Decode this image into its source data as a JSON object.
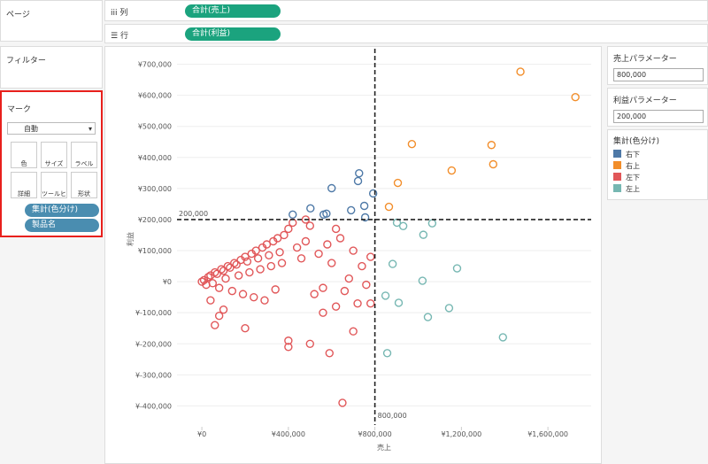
{
  "ui": {
    "pages_label": "ページ",
    "filters_label": "フィルター",
    "shelves": [
      {
        "label": "列",
        "pill": "合計(売上)"
      },
      {
        "label": "行",
        "pill": "合計(利益)"
      }
    ],
    "marks": {
      "title": "マーク",
      "mark_type": "自動",
      "buttons": [
        "色",
        "サイズ",
        "ラベル",
        "詳細",
        "ツールヒ...",
        "形状"
      ],
      "pills": [
        "集計(色分け)",
        "製品名"
      ]
    },
    "parameters": [
      {
        "title": "売上パラメーター",
        "value": "800,000"
      },
      {
        "title": "利益パラメーター",
        "value": "200,000"
      }
    ]
  },
  "chart_data": {
    "type": "scatter",
    "x_label": "売上",
    "y_label": "利益",
    "legend_title": "集計(色分け)",
    "grid": true,
    "xlim": [
      -115000,
      1800000
    ],
    "ylim": [
      -490000,
      750000
    ],
    "xticks": [
      {
        "value": 0,
        "label": "¥0"
      },
      {
        "value": 400000,
        "label": "¥400,000"
      },
      {
        "value": 800000,
        "label": "¥800,000"
      },
      {
        "value": 1200000,
        "label": "¥1,200,000"
      },
      {
        "value": 1600000,
        "label": "¥1,600,000"
      }
    ],
    "yticks": [
      {
        "value": -400000,
        "label": "¥-400,000"
      },
      {
        "value": -300000,
        "label": "¥-300,000"
      },
      {
        "value": -200000,
        "label": "¥-200,000"
      },
      {
        "value": -100000,
        "label": "¥-100,000"
      },
      {
        "value": 0,
        "label": "¥0"
      },
      {
        "value": 100000,
        "label": "¥100,000"
      },
      {
        "value": 200000,
        "label": "¥200,000"
      },
      {
        "value": 300000,
        "label": "¥300,000"
      },
      {
        "value": 400000,
        "label": "¥400,000"
      },
      {
        "value": 500000,
        "label": "¥500,000"
      },
      {
        "value": 600000,
        "label": "¥600,000"
      },
      {
        "value": 700000,
        "label": "¥700,000"
      }
    ],
    "reference_lines": [
      {
        "axis": "x",
        "value": 800000,
        "label": "800,000"
      },
      {
        "axis": "y",
        "value": 200000,
        "label": "200,000"
      }
    ],
    "series": [
      {
        "name": "右下",
        "color": "#4e79a7",
        "x": [
          420000,
          502000,
          563000,
          576000,
          600000,
          690000,
          722000,
          727000,
          751000,
          755000,
          792000
        ],
        "values": [
          216000,
          236000,
          216000,
          219000,
          301000,
          230000,
          324000,
          349000,
          244000,
          207000,
          284000
        ]
      },
      {
        "name": "右上",
        "color": "#f28e2b",
        "x": [
          1473000,
          1727000,
          971000,
          1339000,
          1347000,
          1155000,
          906000,
          865000
        ],
        "values": [
          676000,
          594000,
          443000,
          440000,
          378000,
          358000,
          318000,
          241000
        ]
      },
      {
        "name": "左下",
        "color": "#e15759",
        "x": [
          0,
          10000,
          20000,
          30000,
          40000,
          50000,
          60000,
          70000,
          80000,
          90000,
          100000,
          110000,
          120000,
          130000,
          140000,
          150000,
          160000,
          170000,
          180000,
          190000,
          200000,
          210000,
          220000,
          230000,
          240000,
          250000,
          260000,
          270000,
          280000,
          290000,
          300000,
          310000,
          320000,
          330000,
          340000,
          350000,
          360000,
          370000,
          380000,
          400000,
          420000,
          440000,
          460000,
          480000,
          500000,
          520000,
          540000,
          560000,
          580000,
          600000,
          620000,
          640000,
          660000,
          680000,
          700000,
          720000,
          740000,
          760000,
          780000,
          60000,
          200000,
          400000,
          400000,
          500000,
          560000,
          590000,
          650000,
          700000,
          780000,
          620000,
          480000,
          100000,
          40000,
          80000
        ],
        "values": [
          0,
          5000,
          -10000,
          15000,
          20000,
          -5000,
          30000,
          25000,
          -20000,
          40000,
          35000,
          10000,
          50000,
          45000,
          -30000,
          60000,
          55000,
          20000,
          70000,
          -40000,
          80000,
          65000,
          30000,
          90000,
          -50000,
          100000,
          75000,
          40000,
          110000,
          -60000,
          120000,
          85000,
          50000,
          130000,
          -25000,
          140000,
          95000,
          60000,
          150000,
          170000,
          190000,
          110000,
          75000,
          130000,
          180000,
          -40000,
          90000,
          -20000,
          120000,
          60000,
          -80000,
          140000,
          -30000,
          10000,
          100000,
          -70000,
          50000,
          -10000,
          80000,
          -140000,
          -150000,
          -190000,
          -210000,
          -200000,
          -100000,
          -230000,
          -390000,
          -160000,
          -70000,
          170000,
          200000,
          -90000,
          -60000,
          -110000
        ]
      },
      {
        "name": "左上",
        "color": "#76b7b2",
        "x": [
          902000,
          931000,
          1065000,
          1024000,
          882000,
          1180000,
          1020000,
          849000,
          910000,
          1143000,
          1045000,
          1392000,
          857000
        ],
        "values": [
          190000,
          179000,
          188000,
          151000,
          57000,
          43000,
          3000,
          -45000,
          -68000,
          -85000,
          -114000,
          -179000,
          -230000
        ]
      }
    ]
  }
}
